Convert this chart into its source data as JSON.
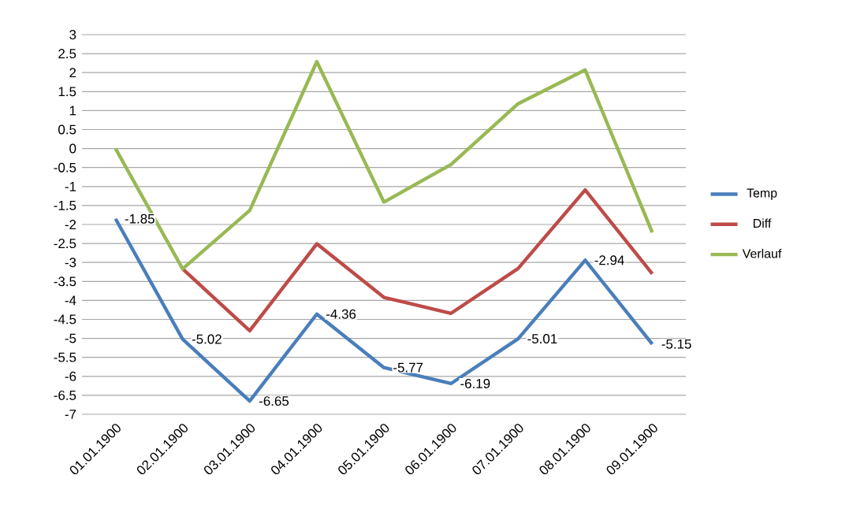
{
  "chart_data": {
    "type": "line",
    "categories": [
      "01.01.1900",
      "02.01.1900",
      "03.01.1900",
      "04.01.1900",
      "05.01.1900",
      "06.01.1900",
      "07.01.1900",
      "08.01.1900",
      "09.01.1900"
    ],
    "series": [
      {
        "name": "Temp",
        "color": "#4a7ebb",
        "values": [
          -1.85,
          -5.02,
          -6.65,
          -4.36,
          -5.77,
          -6.19,
          -5.01,
          -2.94,
          -5.15
        ],
        "value_labels": [
          "-1.85",
          "-5.02",
          "-6.65",
          "-4.36",
          "-5.77",
          "-6.19",
          "-5.01",
          "-2.94",
          "-5.15"
        ]
      },
      {
        "name": "Diff",
        "color": "#be4b48",
        "values": [
          null,
          -3.17,
          -4.8,
          -2.51,
          -3.92,
          -4.34,
          -3.16,
          -1.09,
          -3.3
        ]
      },
      {
        "name": "Verlauf",
        "color": "#98b954",
        "values": [
          0,
          -3.17,
          -1.63,
          2.29,
          -1.41,
          -0.42,
          1.18,
          2.07,
          -2.21
        ]
      }
    ],
    "ylim": [
      -7,
      3
    ],
    "yticks": [
      -7,
      -6.5,
      -6,
      -5.5,
      -5,
      -4.5,
      -4,
      -3.5,
      -3,
      -2.5,
      -2,
      -1.5,
      -1,
      -0.5,
      0,
      0.5,
      1,
      1.5,
      2,
      2.5,
      3
    ],
    "grid": "y",
    "legend": "right",
    "marker": "none",
    "line_style": "solid"
  }
}
